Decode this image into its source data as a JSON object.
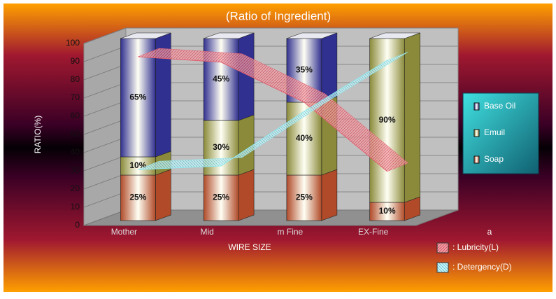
{
  "chart_data": {
    "type": "bar3d-stacked",
    "title": "(Ratio of Ingredient)",
    "y_label": "RATIO(%)",
    "x_label": "WIRE SIZE",
    "categories": [
      "Mother",
      "Mid",
      "m Fine",
      "EX-Fine"
    ],
    "ylim": [
      0,
      100
    ],
    "yticks": [
      0,
      10,
      20,
      30,
      40,
      50,
      60,
      70,
      80,
      90,
      100
    ],
    "grid": true,
    "series": [
      {
        "name": "Soap",
        "color": "#b04a28",
        "values": [
          25,
          25,
          25,
          10
        ],
        "value_labels": [
          "25%",
          "25%",
          "25%",
          "10%"
        ]
      },
      {
        "name": "Emuil",
        "color": "#8a8a3a",
        "values": [
          10,
          30,
          40,
          90
        ],
        "value_labels": [
          "10%",
          "30%",
          "40%",
          "90%"
        ]
      },
      {
        "name": "Base Oil",
        "color": "#303090",
        "values": [
          65,
          45,
          35,
          0
        ],
        "value_labels": [
          "65%",
          "45%",
          "35%",
          null
        ]
      }
    ],
    "lines": [
      {
        "name": ": Lubricity(L)",
        "color": "#e06070",
        "values": [
          90,
          87,
          65,
          27
        ]
      },
      {
        "name": ": Detergency(D)",
        "color": "#90e8f0",
        "values": [
          28,
          30,
          60,
          88
        ]
      }
    ],
    "annotation": "a"
  }
}
